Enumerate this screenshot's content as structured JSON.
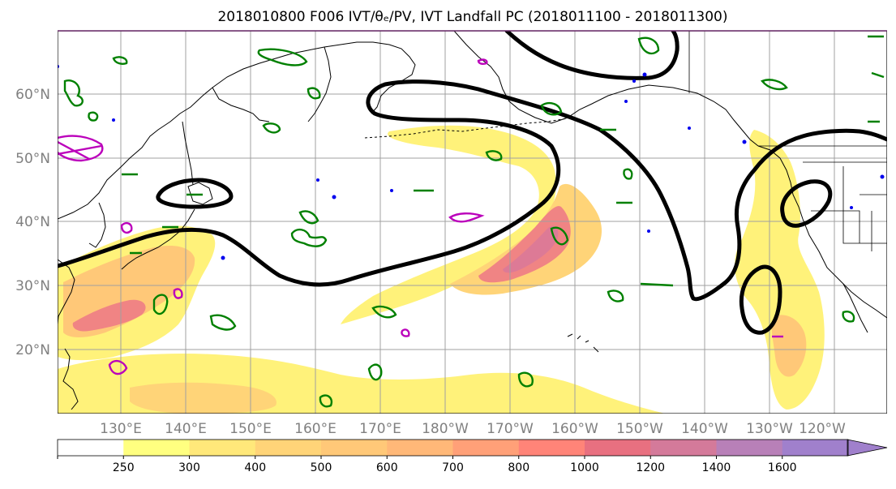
{
  "title": "2018010800 F006 IVT/θₑ/PV, IVT Landfall PC (2018011100 - 2018011300)",
  "map": {
    "lat_labels": [
      "60°N",
      "50°N",
      "40°N",
      "30°N",
      "20°N"
    ],
    "lon_labels": [
      "130°E",
      "140°E",
      "150°E",
      "160°E",
      "170°E",
      "180°W",
      "170°W",
      "160°W",
      "150°W",
      "140°W",
      "130°W",
      "120°W"
    ]
  },
  "colorbar": {
    "ticks": [
      "250",
      "300",
      "400",
      "500",
      "600",
      "700",
      "800",
      "1000",
      "1200",
      "1400",
      "1600"
    ],
    "colors": [
      "#ffffff",
      "#ffff80",
      "#ffe87a",
      "#ffd478",
      "#ffc878",
      "#ffb878",
      "#ffa078",
      "#ff8478",
      "#e87080",
      "#d47a9a",
      "#b880b8",
      "#a080cc"
    ]
  },
  "legend_colors": {
    "pv_contour": "#000000",
    "theta_contour": "#008000",
    "magenta_contour": "#bb00bb",
    "blue_contour": "#0000ee"
  }
}
